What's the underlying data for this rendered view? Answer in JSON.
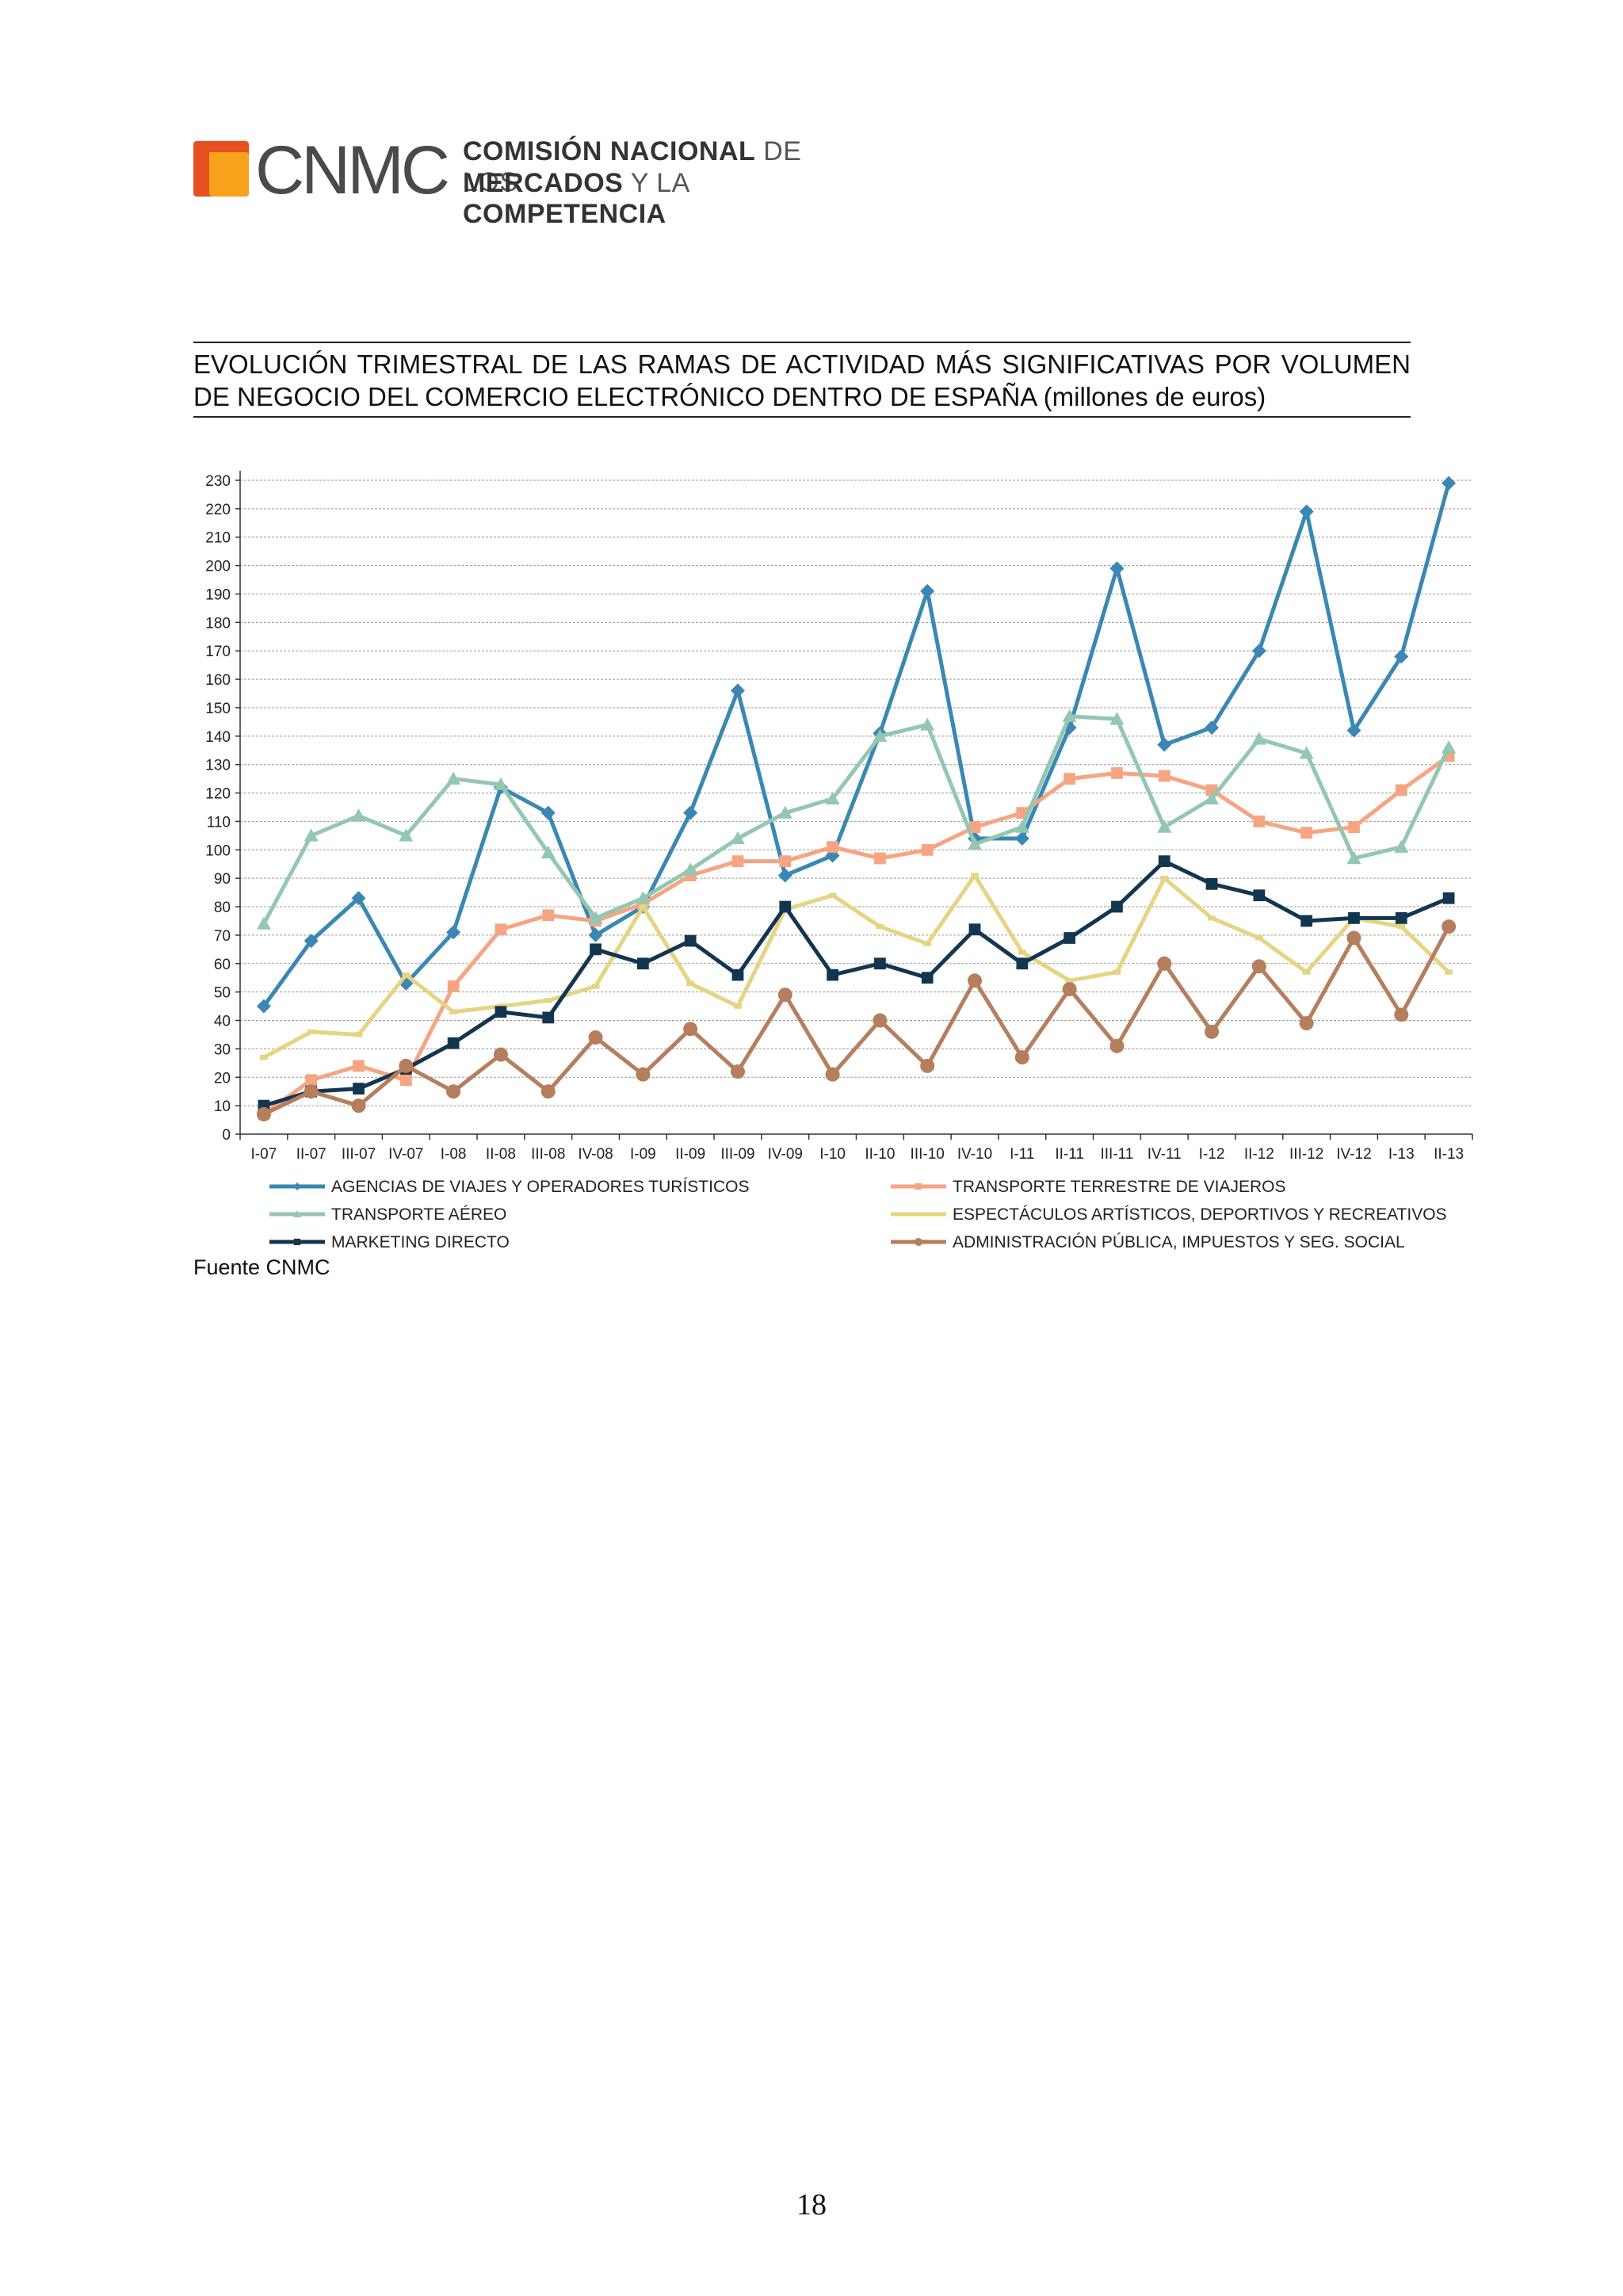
{
  "logo": {
    "word": "CNMC",
    "line1_bold": "COMISIÓN NACIONAL",
    "line1_light": "DE LOS",
    "line2_bold": "MERCADOS",
    "line2_light": "Y LA",
    "line2_bold2": "COMPETENCIA"
  },
  "title": "EVOLUCIÓN TRIMESTRAL DE LAS RAMAS DE ACTIVIDAD MÁS SIGNIFICATIVAS POR VOLUMEN DE NEGOCIO DEL COMERCIO ELECTRÓNICO DENTRO DE ESPAÑA (millones de euros)",
  "source": "Fuente CNMC",
  "page_number": "18",
  "chart_data": {
    "type": "line",
    "ylim": [
      0,
      230
    ],
    "yticks": [
      0,
      10,
      20,
      30,
      40,
      50,
      60,
      70,
      80,
      90,
      100,
      110,
      120,
      130,
      140,
      150,
      160,
      170,
      180,
      190,
      200,
      210,
      220,
      230
    ],
    "grid": true,
    "legend_position": "bottom",
    "categories": [
      "I-07",
      "II-07",
      "III-07",
      "IV-07",
      "I-08",
      "II-08",
      "III-08",
      "IV-08",
      "I-09",
      "II-09",
      "III-09",
      "IV-09",
      "I-10",
      "II-10",
      "III-10",
      "IV-10",
      "I-11",
      "II-11",
      "III-11",
      "IV-11",
      "I-12",
      "II-12",
      "III-12",
      "IV-12",
      "I-13",
      "II-13"
    ],
    "series": [
      {
        "name": "AGENCIAS DE VIAJES Y OPERADORES TURÍSTICOS",
        "color": "#3a87b4",
        "marker": "diamond",
        "values": [
          45,
          68,
          83,
          53,
          71,
          122,
          113,
          70,
          80,
          113,
          156,
          91,
          98,
          141,
          191,
          104,
          104,
          143,
          199,
          137,
          143,
          170,
          219,
          142,
          168,
          229
        ]
      },
      {
        "name": "TRANSPORTE TERRESTRE DE VIAJEROS",
        "color": "#f6a482",
        "marker": "square",
        "values": [
          7,
          19,
          24,
          19,
          52,
          72,
          77,
          75,
          81,
          91,
          96,
          96,
          101,
          97,
          100,
          108,
          113,
          125,
          127,
          126,
          121,
          110,
          106,
          108,
          121,
          133
        ]
      },
      {
        "name": "TRANSPORTE AÉREO",
        "color": "#93c7b2",
        "marker": "triangle",
        "values": [
          74,
          105,
          112,
          105,
          125,
          123,
          99,
          76,
          83,
          93,
          104,
          113,
          118,
          140,
          144,
          102,
          108,
          147,
          146,
          108,
          118,
          139,
          134,
          97,
          101,
          136
        ]
      },
      {
        "name": "ESPECTÁCULOS ARTÍSTICOS, DEPORTIVOS Y RECREATIVOS",
        "color": "#e5d482",
        "marker": "dash",
        "values": [
          27,
          36,
          35,
          56,
          43,
          45,
          47,
          52,
          80,
          53,
          45,
          79,
          84,
          73,
          67,
          91,
          64,
          54,
          57,
          90,
          76,
          69,
          57,
          76,
          73,
          57
        ]
      },
      {
        "name": "MARKETING DIRECTO",
        "color": "#133650",
        "marker": "square",
        "values": [
          10,
          15,
          16,
          23,
          32,
          43,
          41,
          65,
          60,
          68,
          56,
          80,
          56,
          60,
          55,
          72,
          60,
          69,
          80,
          96,
          88,
          84,
          75,
          76,
          76,
          83
        ]
      },
      {
        "name": "ADMINISTRACIÓN PÚBLICA, IMPUESTOS Y SEG. SOCIAL",
        "color": "#b57e5c",
        "marker": "circle",
        "values": [
          7,
          15,
          10,
          24,
          15,
          28,
          15,
          34,
          21,
          37,
          22,
          49,
          21,
          40,
          24,
          54,
          27,
          51,
          31,
          60,
          36,
          59,
          39,
          69,
          42,
          73
        ]
      }
    ]
  }
}
